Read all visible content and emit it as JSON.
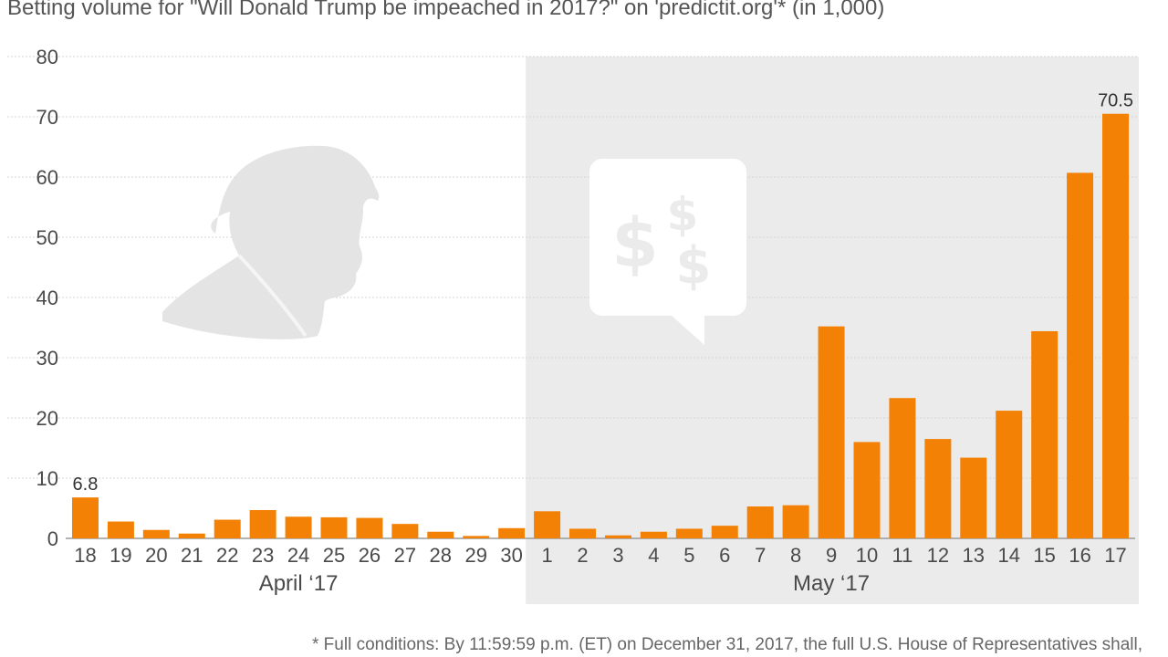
{
  "title": "Betting volume for \"Will Donald Trump be impeached in 2017?\" on 'predictit.org'* (in 1,000)",
  "footnote": "* Full conditions: By 11:59:59 p.m. (ET) on December 31, 2017, the full U.S. House of Representatives shall,",
  "colors": {
    "bar": "#f38105",
    "shade": "#ebebeb",
    "grid": "#d6d6d6",
    "silhouette": "#e4e4e4",
    "bubble": "#ffffff"
  },
  "icons": [
    "trump-silhouette-icon",
    "dollar-speech-bubble-icon"
  ],
  "chart_data": {
    "type": "bar",
    "categories": [
      "18",
      "19",
      "20",
      "21",
      "22",
      "23",
      "24",
      "25",
      "26",
      "27",
      "28",
      "29",
      "30",
      "1",
      "2",
      "3",
      "4",
      "5",
      "6",
      "7",
      "8",
      "9",
      "10",
      "11",
      "12",
      "13",
      "14",
      "15",
      "16",
      "17"
    ],
    "values": [
      6.8,
      2.8,
      1.4,
      0.8,
      3.1,
      4.7,
      3.6,
      3.5,
      3.4,
      2.4,
      1.1,
      0.4,
      1.7,
      4.5,
      1.6,
      0.5,
      1.1,
      1.6,
      2.1,
      5.3,
      5.5,
      35.2,
      16.0,
      23.3,
      16.5,
      13.4,
      21.2,
      34.4,
      60.7,
      70.5
    ],
    "data_labels": {
      "0": "6.8",
      "29": "70.5"
    },
    "groups": [
      {
        "label": "April ‘17",
        "start": 0,
        "end": 12,
        "shaded": false
      },
      {
        "label": "May ‘17",
        "start": 13,
        "end": 29,
        "shaded": true
      }
    ],
    "yticks": [
      "0",
      "10",
      "20",
      "30",
      "40",
      "50",
      "60",
      "70",
      "80"
    ],
    "ylim": [
      0,
      80
    ],
    "grid": true,
    "legend": "none",
    "xlabel": "",
    "ylabel": ""
  }
}
